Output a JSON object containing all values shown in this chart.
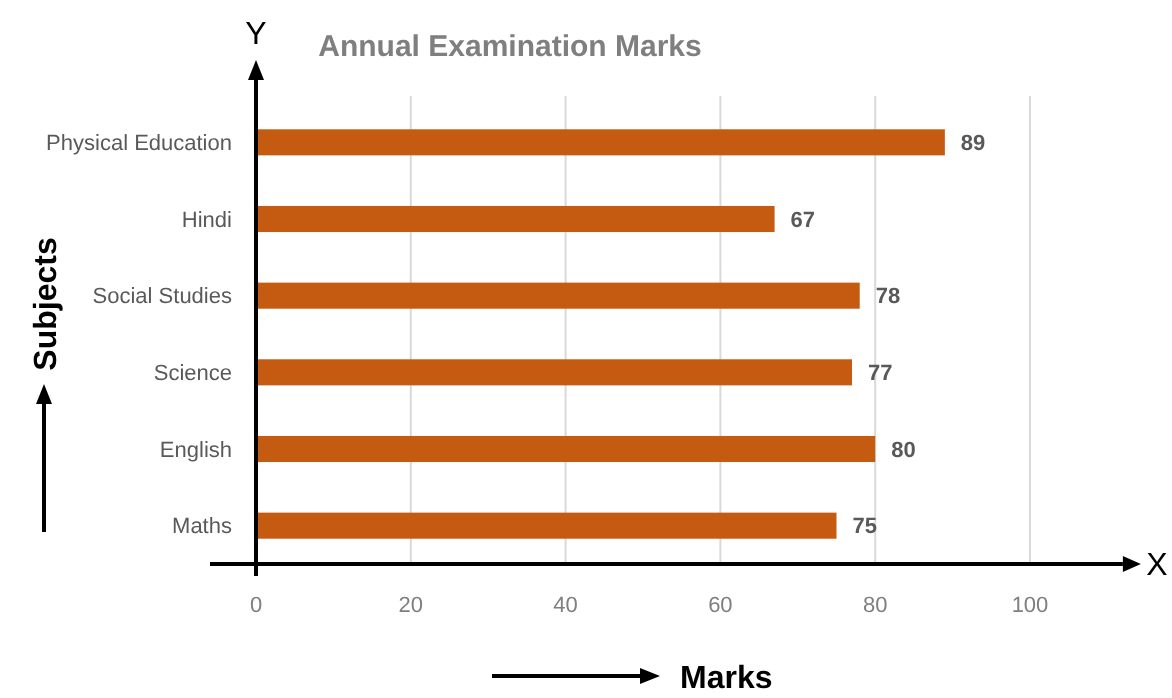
{
  "chart_data": {
    "type": "bar",
    "orientation": "horizontal",
    "title": "Annual Examination Marks",
    "xlabel": "Marks",
    "ylabel": "Subjects",
    "categories": [
      "Physical Education",
      "Hindi",
      "Social Studies",
      "Science",
      "English",
      "Maths"
    ],
    "values": [
      89,
      67,
      78,
      77,
      80,
      75
    ],
    "color": "#c55a11",
    "data_labels": true,
    "xlim": [
      0,
      112
    ],
    "xticks": [
      0,
      20,
      40,
      60,
      80,
      100
    ],
    "grid": "x",
    "annotations": [
      "Y",
      "X"
    ]
  }
}
